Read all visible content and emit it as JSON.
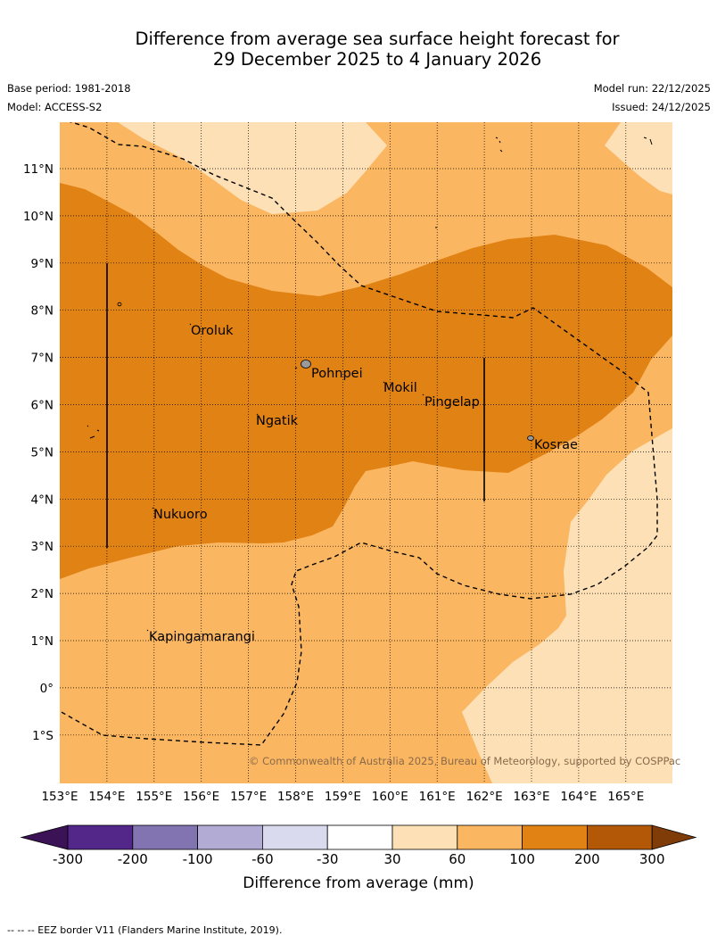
{
  "title": {
    "line1": "Difference from average sea surface height forecast for",
    "line2": "29 December 2025 to 4 January 2026"
  },
  "meta": {
    "base_period": "Base period: 1981-2018",
    "model": "Model: ACCESS-S2",
    "model_run": "Model run: 22/12/2025",
    "issued": "Issued: 24/12/2025"
  },
  "lat_labels": [
    "11°N",
    "10°N",
    "9°N",
    "8°N",
    "7°N",
    "6°N",
    "5°N",
    "4°N",
    "3°N",
    "2°N",
    "1°N",
    "0°",
    "1°S"
  ],
  "lon_labels": [
    "153°E",
    "154°E",
    "155°E",
    "156°E",
    "157°E",
    "158°E",
    "159°E",
    "160°E",
    "161°E",
    "162°E",
    "163°E",
    "164°E",
    "165°E"
  ],
  "places": [
    "Oroluk",
    "Pohnpei",
    "Mokil",
    "Pingelap",
    "Ngatik",
    "Kosrae",
    "Nukuoro",
    "Kapingamarangi"
  ],
  "copyright": "© Commonwealth of Australia 2025, Bureau of Meteorology, supported by COSPPac",
  "colorbar": {
    "ticks": [
      "-300",
      "-200",
      "-100",
      "-60",
      "-30",
      "30",
      "60",
      "100",
      "200",
      "300"
    ],
    "label": "Difference from average (mm)",
    "colors": [
      "#3b1255",
      "#53268a",
      "#8274b0",
      "#b2abd3",
      "#d9daee",
      "#ffffff",
      "#fde0b6",
      "#fbb661",
      "#e08214",
      "#b35806",
      "#7f3b08"
    ]
  },
  "map_colors": {
    "30_60": "#fde0b6",
    "60_100": "#fbb661",
    "100_200": "#e08214"
  },
  "footnote": "--  --  -- EEZ border V11 (Flanders Marine Institute, 2019)."
}
